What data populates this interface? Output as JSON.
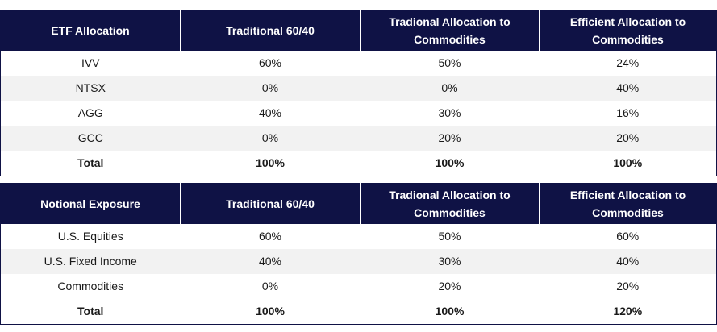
{
  "table1": {
    "headers": [
      "ETF Allocation",
      "Traditional 60/40",
      "Tradional Allocation to Commodities",
      "Efficient Allocation to Commodities"
    ],
    "rows": [
      [
        "IVV",
        "60%",
        "50%",
        "24%"
      ],
      [
        "NTSX",
        "0%",
        "0%",
        "40%"
      ],
      [
        "AGG",
        "40%",
        "30%",
        "16%"
      ],
      [
        "GCC",
        "0%",
        "20%",
        "20%"
      ],
      [
        "Total",
        "100%",
        "100%",
        "100%"
      ]
    ]
  },
  "table2": {
    "headers": [
      "Notional Exposure",
      "Traditional 60/40",
      "Tradional Allocation to Commodities",
      "Efficient Allocation to Commodities"
    ],
    "rows": [
      [
        "U.S. Equities",
        "60%",
        "50%",
        "60%"
      ],
      [
        "U.S. Fixed Income",
        "40%",
        "30%",
        "40%"
      ],
      [
        "Commodities",
        "0%",
        "20%",
        "20%"
      ],
      [
        "Total",
        "100%",
        "100%",
        "120%"
      ]
    ]
  },
  "colors": {
    "header_bg": "#0f1245",
    "stripe_bg": "#f2f2f2"
  }
}
